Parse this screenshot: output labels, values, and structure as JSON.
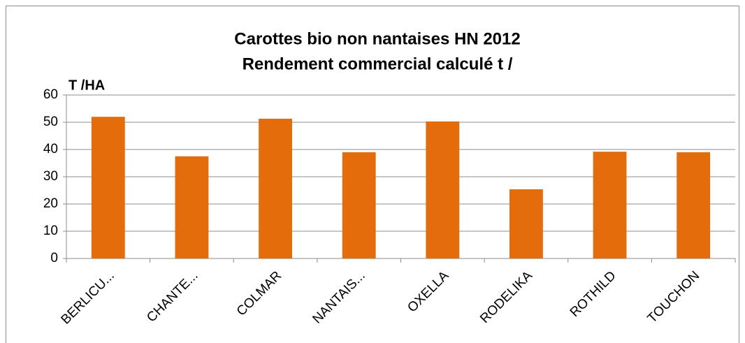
{
  "chart_data": {
    "type": "bar",
    "title": "Carottes bio non nantaises HN 2012",
    "subtitle": "Rendement commercial calculé t /",
    "ylabel": "T /HA",
    "categories": [
      "BERLICU...",
      "CHANTE...",
      "COLMAR",
      "NANTAIS...",
      "OXELLA",
      "RODELIKA",
      "ROTHILD",
      "TOUCHON"
    ],
    "values": [
      52,
      37.5,
      51.3,
      39,
      50.3,
      25.4,
      39.2,
      39
    ],
    "color": "#e46c0a",
    "ylim": [
      0,
      60
    ],
    "yticks": [
      0,
      10,
      20,
      30,
      40,
      50,
      60
    ],
    "grid": true
  }
}
